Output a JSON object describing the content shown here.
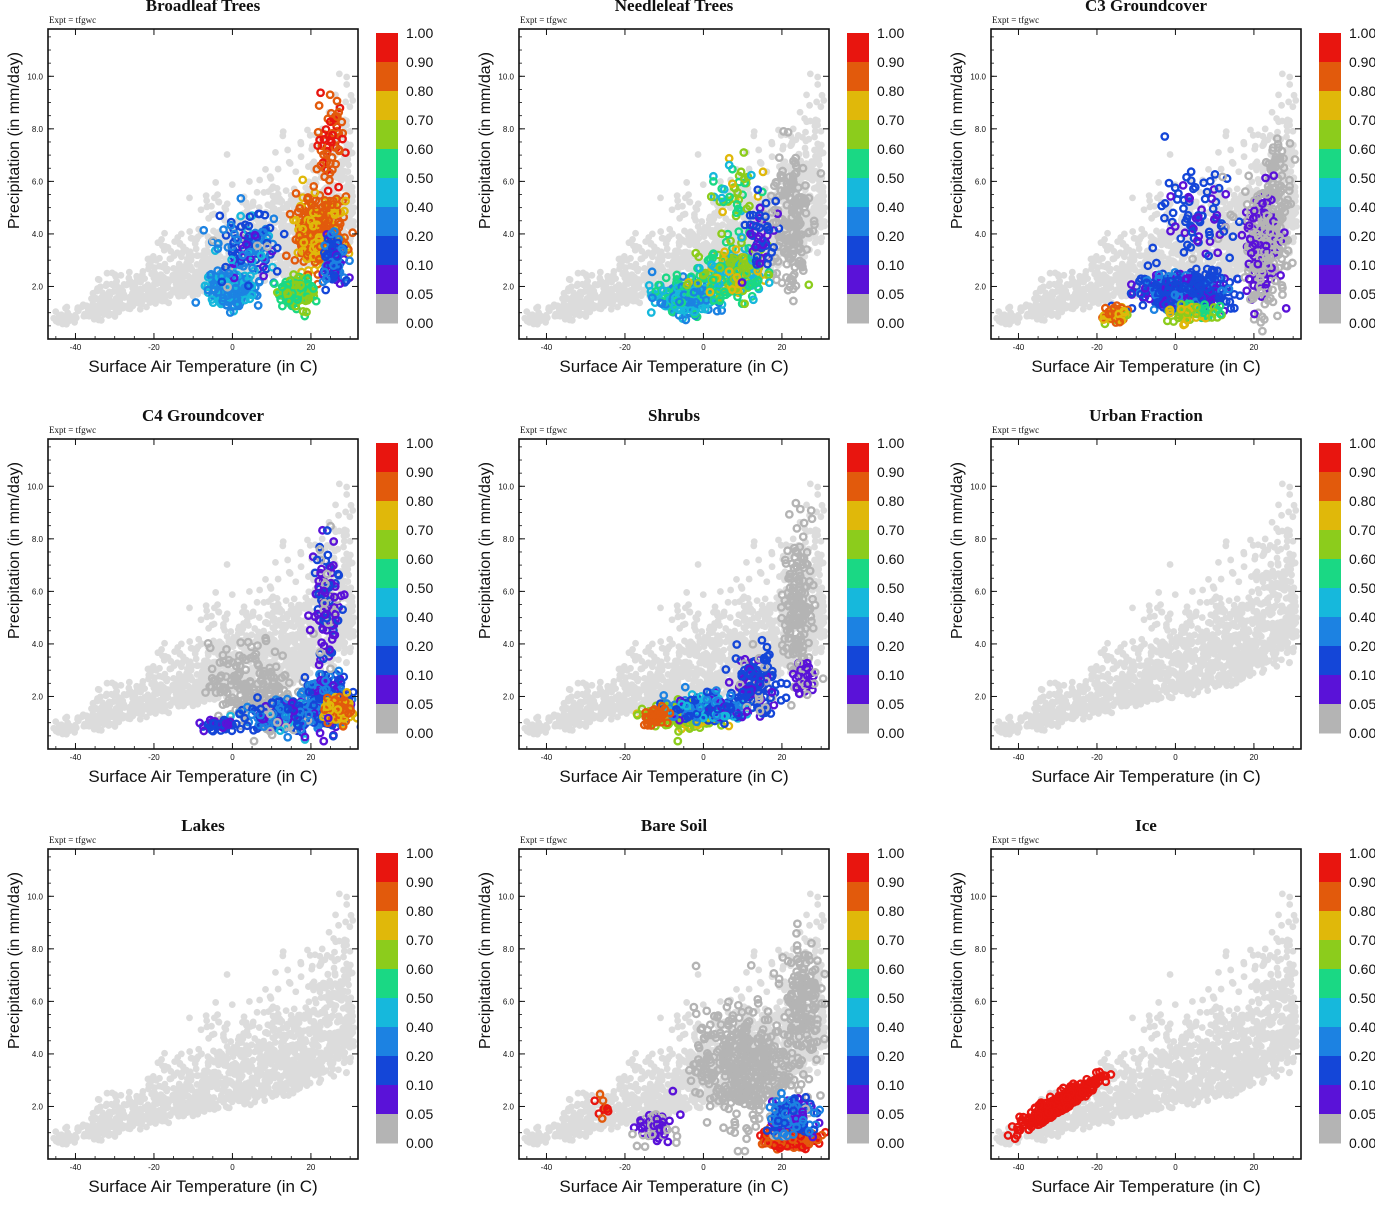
{
  "chart_data": [
    {
      "type": "scatter",
      "title": "Broadleaf Trees",
      "key": "broadleaf"
    },
    {
      "type": "scatter",
      "title": "Needleleaf Trees",
      "key": "needleleaf"
    },
    {
      "type": "scatter",
      "title": "C3 Groundcover",
      "key": "c3"
    },
    {
      "type": "scatter",
      "title": "C4 Groundcover",
      "key": "c4"
    },
    {
      "type": "scatter",
      "title": "Shrubs",
      "key": "shrubs"
    },
    {
      "type": "scatter",
      "title": "Urban Fraction",
      "key": "urban"
    },
    {
      "type": "scatter",
      "title": "Lakes",
      "key": "lakes"
    },
    {
      "type": "scatter",
      "title": "Bare Soil",
      "key": "bare"
    },
    {
      "type": "scatter",
      "title": "Ice",
      "key": "ice"
    }
  ],
  "common": {
    "expt_label": "Expt = tfgwc",
    "xlabel": "Surface Air Temperature (in C)",
    "ylabel": "Precipitation (in mm/day)",
    "xlim": [
      -47,
      32
    ],
    "ylim": [
      0,
      11.8
    ],
    "xticks": [
      "-40",
      "-20",
      "0",
      "20"
    ],
    "xtick_values": [
      -40,
      -20,
      0,
      20
    ],
    "yticks": [
      "2.0",
      "4.0",
      "6.0",
      "8.0",
      "10.0"
    ],
    "ytick_values": [
      2,
      4,
      6,
      8,
      10
    ],
    "colorbar_levels": [
      "1.00",
      "0.90",
      "0.80",
      "0.70",
      "0.60",
      "0.50",
      "0.40",
      "0.20",
      "0.10",
      "0.05",
      "0.00"
    ],
    "colorbar_colors": [
      "#e8150f",
      "#e25a0c",
      "#e0b80a",
      "#8ccc1c",
      "#1ad884",
      "#16b8dc",
      "#1c82e2",
      "#1446d8",
      "#5a12d8",
      "#b4b4b4"
    ],
    "background_point_color": "#dcdcdc"
  }
}
